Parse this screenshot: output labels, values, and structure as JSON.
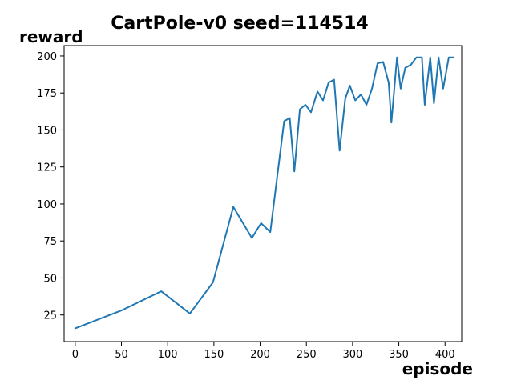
{
  "chart_data": {
    "type": "line",
    "title": "CartPole-v0 seed=114514",
    "xlabel": "episode",
    "ylabel": "reward",
    "xlim": [
      -12,
      418
    ],
    "ylim": [
      7,
      207
    ],
    "xticks": [
      0,
      50,
      100,
      150,
      200,
      250,
      300,
      350,
      400
    ],
    "yticks": [
      25,
      50,
      75,
      100,
      125,
      150,
      175,
      200
    ],
    "grid": false,
    "series": [
      {
        "color": "#1f77b4",
        "x": [
          0,
          50,
          93,
          124,
          149,
          171,
          191,
          201,
          211,
          226,
          232,
          237,
          243,
          249,
          255,
          262,
          268,
          274,
          280,
          286,
          292,
          297,
          303,
          309,
          315,
          321,
          327,
          333,
          339,
          342,
          348,
          352,
          357,
          363,
          369,
          375,
          378,
          384,
          388,
          393,
          398,
          404,
          409
        ],
        "y": [
          16,
          28,
          41,
          26,
          47,
          98,
          77,
          87,
          81,
          156,
          158,
          122,
          164,
          167,
          162,
          176,
          170,
          182,
          184,
          136,
          171,
          180,
          170,
          174,
          167,
          178,
          195,
          196,
          182,
          155,
          199,
          178,
          192,
          194,
          199,
          199,
          167,
          199,
          168,
          199,
          178,
          199,
          199
        ]
      }
    ]
  }
}
